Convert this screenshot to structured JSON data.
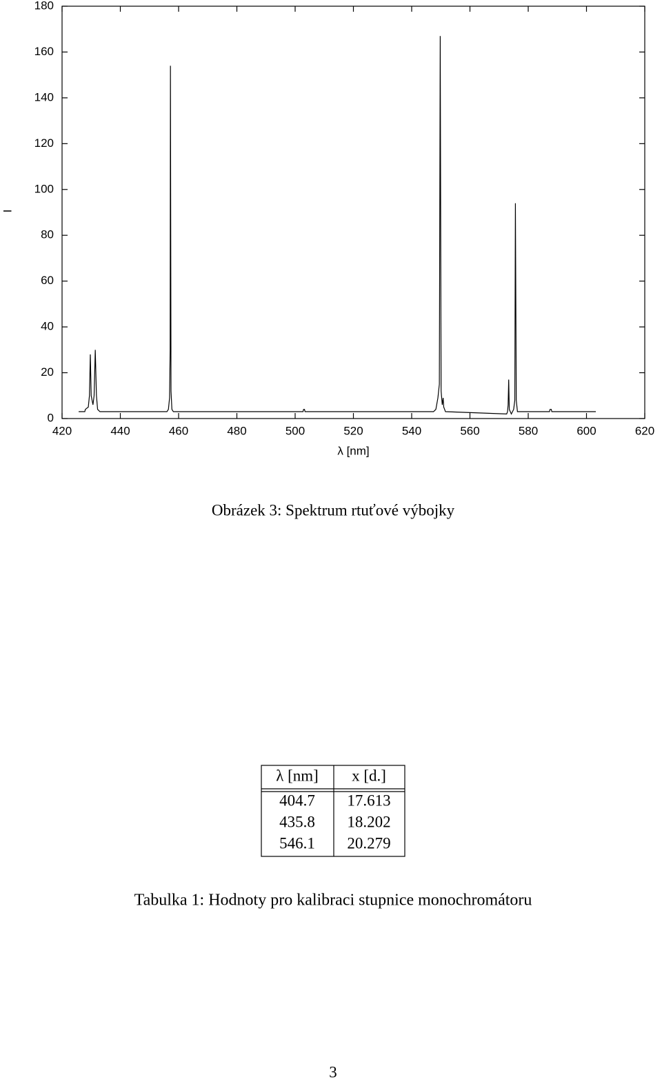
{
  "chart_data": {
    "type": "line",
    "x_label": "λ [nm]",
    "y_label": "I",
    "x": [
      425.7,
      427.8,
      428.0,
      429.0,
      429.4,
      429.7,
      430.0,
      430.6,
      431.0,
      431.4,
      431.8,
      432.2,
      433.0,
      456.0,
      456.5,
      456.9,
      457.1,
      457.2,
      457.4,
      457.7,
      458.2,
      502.7,
      502.9,
      503.2,
      503.4,
      547.5,
      548.3,
      549.0,
      549.5,
      549.8,
      550.1,
      550.5,
      550.8,
      551.0,
      551.6,
      572.6,
      572.9,
      573.1,
      573.3,
      573.5,
      574.2,
      575.0,
      575.4,
      575.6,
      575.9,
      576.3,
      587.3,
      587.5,
      587.9,
      588.1,
      603.2
    ],
    "values": [
      3,
      3,
      4,
      5,
      10,
      28,
      10,
      6,
      10,
      30,
      10,
      4,
      3,
      3,
      4,
      9,
      30,
      154,
      12,
      4,
      3,
      3,
      4,
      4,
      3,
      3,
      4,
      9,
      15,
      167,
      12,
      6,
      9,
      5,
      3,
      2,
      3,
      6,
      17,
      4,
      2,
      4,
      8,
      94,
      8,
      3,
      3,
      4,
      4,
      3,
      3
    ],
    "color": "#000000",
    "xlim": [
      420,
      620
    ],
    "xticks": [
      420,
      440,
      460,
      480,
      500,
      520,
      540,
      560,
      580,
      600,
      620
    ],
    "ylim": [
      0,
      180
    ],
    "yticks": [
      0,
      20,
      40,
      60,
      80,
      100,
      120,
      140,
      160,
      180
    ],
    "grid": false
  },
  "figure_caption": "Obrázek 3: Spektrum rtuťové výbojky",
  "table": {
    "header": [
      "λ [nm]",
      "x [d.]"
    ],
    "rows": [
      [
        "404.7",
        "17.613"
      ],
      [
        "435.8",
        "18.202"
      ],
      [
        "546.1",
        "20.279"
      ]
    ]
  },
  "table_caption": "Tabulka 1: Hodnoty pro kalibraci stupnice monochromátoru",
  "page_number": "3"
}
